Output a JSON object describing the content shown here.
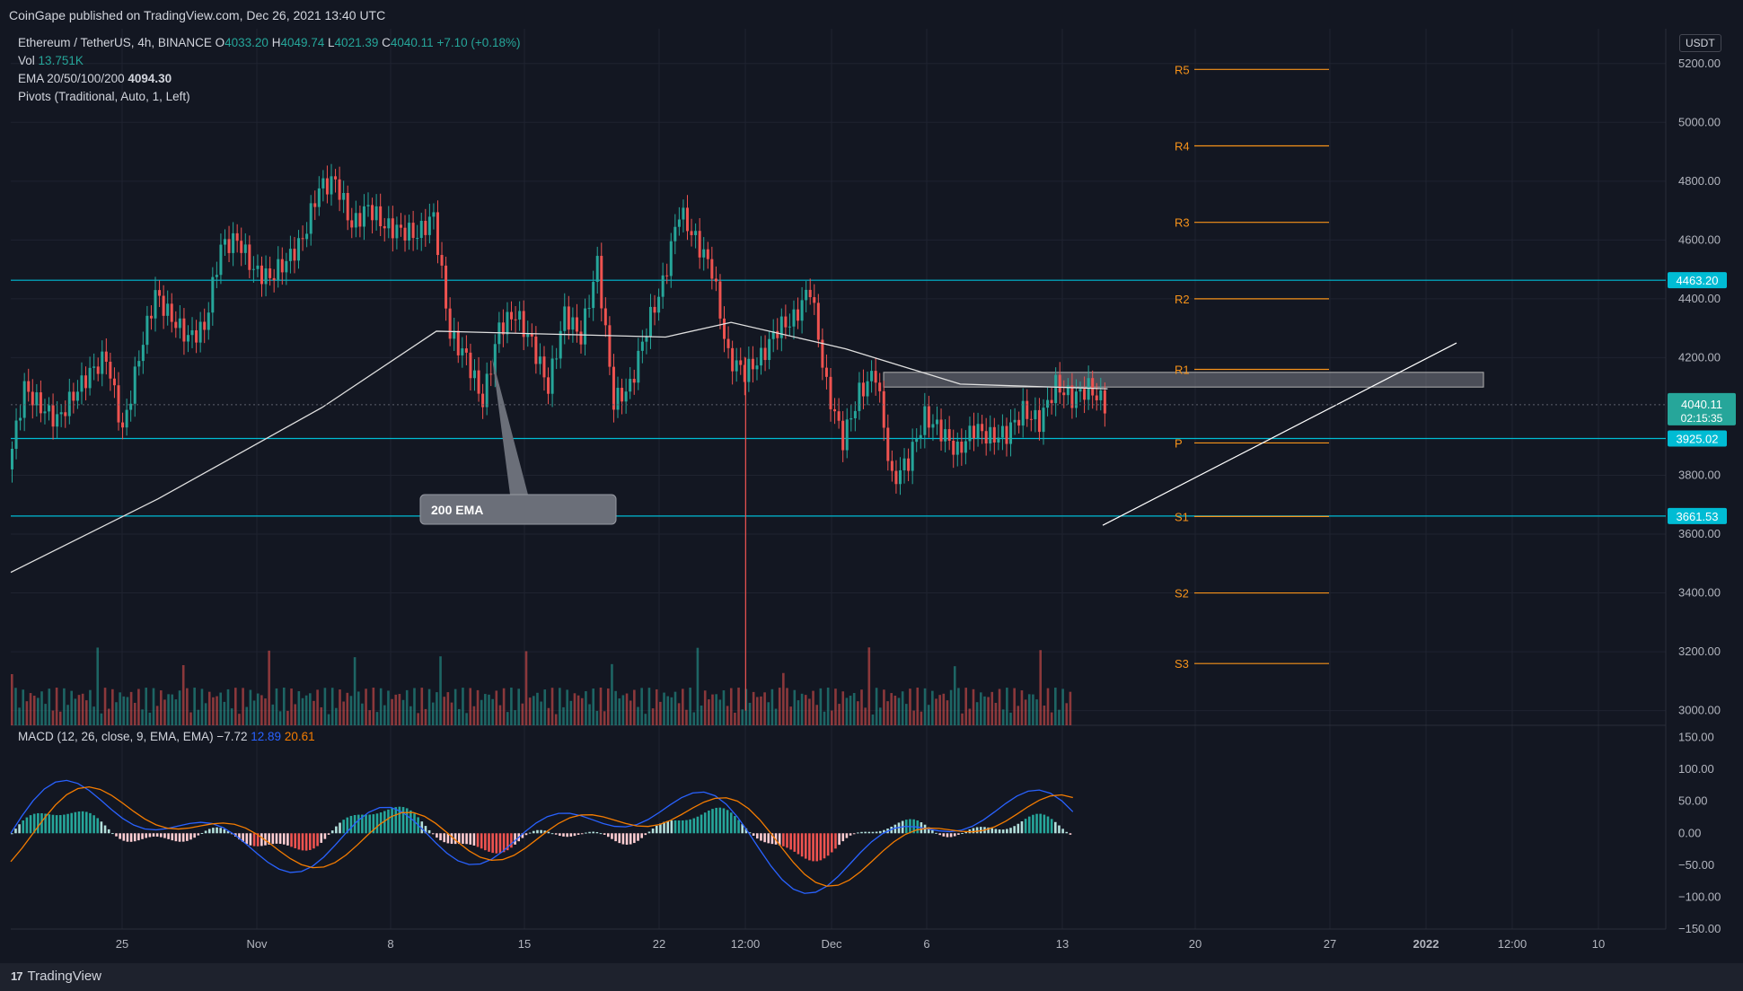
{
  "header": {
    "publisher": "CoinGape published on TradingView.com, Dec 26, 2021 13:40 UTC"
  },
  "legend": {
    "symbol": "Ethereum / TetherUS, 4h, BINANCE",
    "ohlc": {
      "O": "4033.20",
      "H": "4049.74",
      "L": "4021.39",
      "C": "4040.11",
      "change": "+7.10 (+0.18%)"
    },
    "vol_label": "Vol",
    "vol_value": "13.751K",
    "ema_label": "EMA 20/50/100/200",
    "ema_value": "4094.30",
    "pivots_label": "Pivots (Traditional, Auto, 1, Left)"
  },
  "currency_badge": "USDT",
  "macd_legend": {
    "label": "MACD (12, 26, close, 9, EMA, EMA)",
    "v1": "−7.72",
    "v2": "12.89",
    "v3": "20.61"
  },
  "footer": {
    "brand": "TradingView"
  },
  "colors": {
    "up": "#26a69a",
    "down": "#ef5350",
    "pivot": "#f7931a",
    "level": "#00bcd4",
    "macd": "#2962ff",
    "signal": "#f57c00"
  },
  "chart_data": {
    "type": "candlestick",
    "symbol": "ETHUSDT",
    "timeframe": "4h",
    "x_ticks": [
      "25",
      "Nov",
      "8",
      "15",
      "22",
      "12:00",
      "Dec",
      "6",
      "13",
      "20",
      "27",
      "2022",
      "12:00",
      "10"
    ],
    "y_ticks": [
      "5200.00",
      "5000.00",
      "4800.00",
      "4600.00",
      "4400.00",
      "4200.00",
      "3800.00",
      "3600.00",
      "3400.00",
      "3200.00",
      "3000.00"
    ],
    "ylim": [
      2950,
      5300
    ],
    "price_labels": [
      {
        "text": "4463.20",
        "value": 4463.2,
        "kind": "level"
      },
      {
        "text": "3925.02",
        "value": 3925.02,
        "kind": "level"
      },
      {
        "text": "3661.53",
        "value": 3661.53,
        "kind": "level"
      },
      {
        "text": "4040.11",
        "value": 4040.11,
        "kind": "last",
        "countdown": "02:15:35"
      }
    ],
    "pivots": [
      {
        "name": "R5",
        "value": 5180
      },
      {
        "name": "R4",
        "value": 4920
      },
      {
        "name": "R3",
        "value": 4660
      },
      {
        "name": "R2",
        "value": 4400
      },
      {
        "name": "R1",
        "value": 4160
      },
      {
        "name": "P",
        "value": 3910
      },
      {
        "name": "S1",
        "value": 3660
      },
      {
        "name": "S2",
        "value": 3400
      },
      {
        "name": "S3",
        "value": 3160
      }
    ],
    "annotation": {
      "text": "200 EMA"
    },
    "close_path": [
      {
        "d": "Oct 20",
        "v": 3820
      },
      {
        "d": "Oct 21",
        "v": 4100
      },
      {
        "d": "Oct 22",
        "v": 4030
      },
      {
        "d": "Oct 23",
        "v": 3990
      },
      {
        "d": "Oct 24",
        "v": 4070
      },
      {
        "d": "Oct 25",
        "v": 4150
      },
      {
        "d": "Oct 26",
        "v": 4200
      },
      {
        "d": "Oct 27",
        "v": 3950
      },
      {
        "d": "Oct 28",
        "v": 4200
      },
      {
        "d": "Oct 29",
        "v": 4420
      },
      {
        "d": "Oct 30",
        "v": 4330
      },
      {
        "d": "Oct 31",
        "v": 4270
      },
      {
        "d": "Nov 1",
        "v": 4300
      },
      {
        "d": "Nov 2",
        "v": 4580
      },
      {
        "d": "Nov 3",
        "v": 4600
      },
      {
        "d": "Nov 4",
        "v": 4500
      },
      {
        "d": "Nov 5",
        "v": 4470
      },
      {
        "d": "Nov 6",
        "v": 4530
      },
      {
        "d": "Nov 7",
        "v": 4600
      },
      {
        "d": "Nov 8",
        "v": 4780
      },
      {
        "d": "Nov 9",
        "v": 4800
      },
      {
        "d": "Nov 10",
        "v": 4650
      },
      {
        "d": "Nov 11",
        "v": 4710
      },
      {
        "d": "Nov 12",
        "v": 4650
      },
      {
        "d": "Nov 13",
        "v": 4630
      },
      {
        "d": "Nov 14",
        "v": 4620
      },
      {
        "d": "Nov 15",
        "v": 4680
      },
      {
        "d": "Nov 16",
        "v": 4280
      },
      {
        "d": "Nov 17",
        "v": 4200
      },
      {
        "d": "Nov 18",
        "v": 4050
      },
      {
        "d": "Nov 19",
        "v": 4300
      },
      {
        "d": "Nov 20",
        "v": 4350
      },
      {
        "d": "Nov 21",
        "v": 4250
      },
      {
        "d": "Nov 22",
        "v": 4100
      },
      {
        "d": "Nov 23",
        "v": 4350
      },
      {
        "d": "Nov 24",
        "v": 4270
      },
      {
        "d": "Nov 25",
        "v": 4520
      },
      {
        "d": "Nov 26",
        "v": 4050
      },
      {
        "d": "Nov 27",
        "v": 4100
      },
      {
        "d": "Nov 28",
        "v": 4300
      },
      {
        "d": "Nov 29",
        "v": 4450
      },
      {
        "d": "Nov 30",
        "v": 4700
      },
      {
        "d": "Dec 1",
        "v": 4600
      },
      {
        "d": "Dec 2",
        "v": 4500
      },
      {
        "d": "Dec 3",
        "v": 4200
      },
      {
        "d": "Dec 4",
        "v": 4150
      },
      {
        "d": "Dec 5",
        "v": 4200
      },
      {
        "d": "Dec 6",
        "v": 4300
      },
      {
        "d": "Dec 7",
        "v": 4330
      },
      {
        "d": "Dec 8",
        "v": 4440
      },
      {
        "d": "Dec 9",
        "v": 4100
      },
      {
        "d": "Dec 10",
        "v": 3920
      },
      {
        "d": "Dec 11",
        "v": 4080
      },
      {
        "d": "Dec 12",
        "v": 4150
      },
      {
        "d": "Dec 13",
        "v": 3780
      },
      {
        "d": "Dec 14",
        "v": 3850
      },
      {
        "d": "Dec 15",
        "v": 4000
      },
      {
        "d": "Dec 16",
        "v": 3950
      },
      {
        "d": "Dec 17",
        "v": 3880
      },
      {
        "d": "Dec 18",
        "v": 3960
      },
      {
        "d": "Dec 19",
        "v": 3930
      },
      {
        "d": "Dec 20",
        "v": 3940
      },
      {
        "d": "Dec 21",
        "v": 4020
      },
      {
        "d": "Dec 22",
        "v": 3980
      },
      {
        "d": "Dec 23",
        "v": 4110
      },
      {
        "d": "Dec 24",
        "v": 4060
      },
      {
        "d": "Dec 25",
        "v": 4100
      },
      {
        "d": "Dec 26",
        "v": 4040
      }
    ],
    "ema200_path": [
      {
        "d": "Oct 20",
        "v": 3470
      },
      {
        "d": "Oct 29",
        "v": 3720
      },
      {
        "d": "Nov 8",
        "v": 4030
      },
      {
        "d": "Nov 15",
        "v": 4290
      },
      {
        "d": "Nov 22",
        "v": 4280
      },
      {
        "d": "Nov 29",
        "v": 4270
      },
      {
        "d": "Dec 3",
        "v": 4320
      },
      {
        "d": "Dec 10",
        "v": 4230
      },
      {
        "d": "Dec 17",
        "v": 4110
      },
      {
        "d": "Dec 26",
        "v": 4094
      }
    ],
    "macd": {
      "y_ticks": [
        "150.00",
        "100.00",
        "50.00",
        "0.00",
        "−50.00",
        "−100.00",
        "−150.00"
      ],
      "ylim": [
        -150,
        155
      ]
    }
  }
}
